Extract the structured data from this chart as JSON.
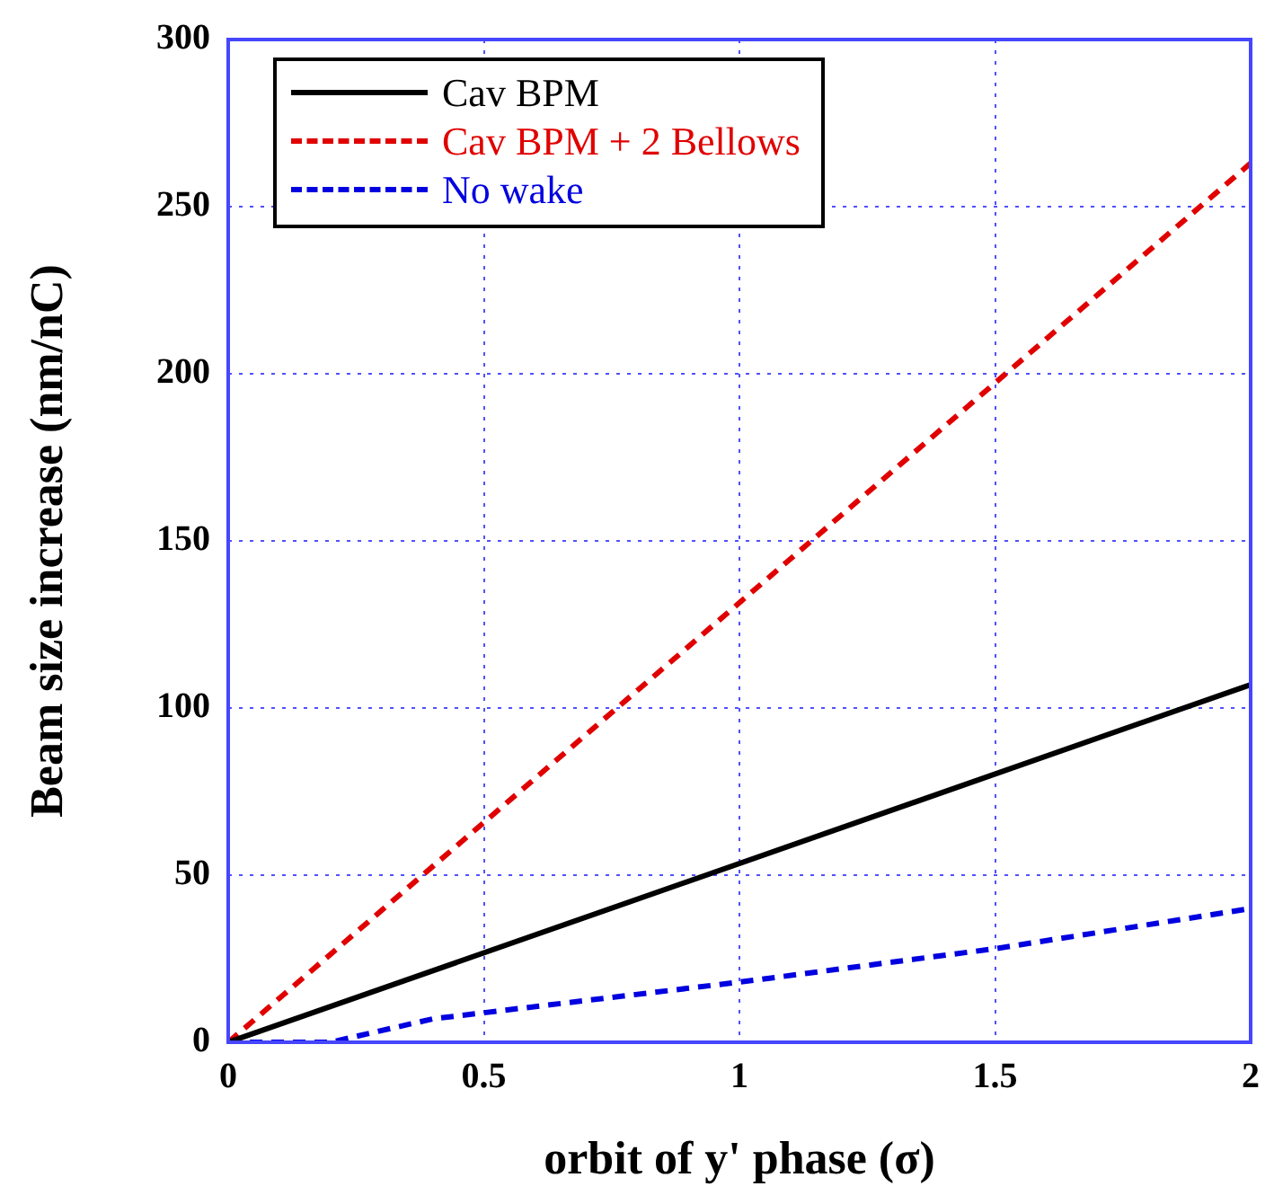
{
  "chart_data": {
    "type": "line",
    "xlabel": "orbit of y' phase (σ)",
    "ylabel": "Beam size increase (nm/nC)",
    "xlim": [
      0,
      2
    ],
    "xticks": [
      0,
      0.5,
      1,
      1.5,
      2
    ],
    "ylim": [
      0,
      300
    ],
    "yticks": [
      0,
      50,
      100,
      150,
      200,
      250,
      300
    ],
    "grid": true,
    "legend": "top left",
    "marker": "none",
    "series": [
      {
        "name": "Cav BPM",
        "color": "#000000",
        "line_style": "solid",
        "x": [
          0,
          2
        ],
        "values": [
          0,
          107
        ]
      },
      {
        "name": "Cav BPM + 2 Bellows",
        "color": "#e00000",
        "line_style": "dashed",
        "x": [
          0,
          2
        ],
        "values": [
          0,
          263
        ]
      },
      {
        "name": "No wake",
        "color": "#0000e0",
        "line_style": "dashed",
        "x": [
          0,
          0.2,
          0.4,
          1,
          1.5,
          2
        ],
        "values": [
          0,
          0,
          7,
          18,
          28,
          40
        ]
      }
    ]
  }
}
